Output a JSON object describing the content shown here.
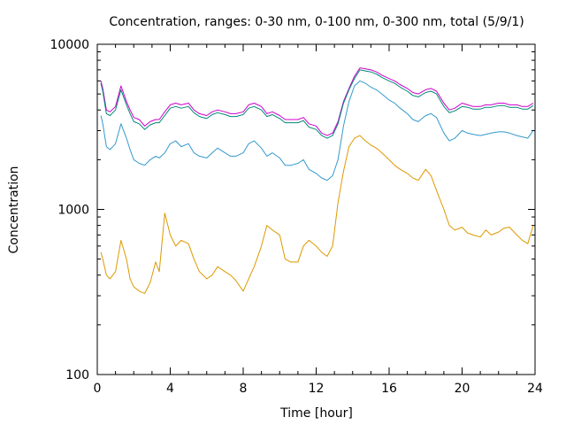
{
  "chart_data": {
    "type": "line",
    "title": "Concentration, ranges: 0-30 nm, 0-100 nm, 0-300 nm, total (5/9/1)",
    "xlabel": "Time [hour]",
    "ylabel": "Concentration",
    "xlim": [
      0,
      24
    ],
    "ylim": [
      100,
      10000
    ],
    "yscale": "log",
    "grid": false,
    "legend": "none",
    "xticks": [
      0,
      4,
      8,
      12,
      16,
      20,
      24
    ],
    "yticks": [
      100,
      1000,
      10000
    ],
    "x": [
      0.2,
      0.3,
      0.5,
      0.7,
      1.0,
      1.3,
      1.6,
      1.8,
      2.0,
      2.3,
      2.6,
      2.9,
      3.2,
      3.4,
      3.7,
      4.0,
      4.3,
      4.6,
      5.0,
      5.3,
      5.6,
      6.0,
      6.3,
      6.6,
      7.0,
      7.3,
      7.6,
      8.0,
      8.3,
      8.6,
      9.0,
      9.3,
      9.6,
      10.0,
      10.3,
      10.6,
      11.0,
      11.3,
      11.6,
      12.0,
      12.3,
      12.6,
      12.9,
      13.2,
      13.5,
      13.8,
      14.1,
      14.4,
      14.7,
      15.0,
      15.3,
      15.6,
      16.0,
      16.3,
      16.6,
      17.0,
      17.3,
      17.6,
      18.0,
      18.3,
      18.6,
      19.0,
      19.3,
      19.6,
      20.0,
      20.3,
      20.6,
      21.0,
      21.3,
      21.6,
      22.0,
      22.3,
      22.6,
      23.0,
      23.3,
      23.6,
      23.9
    ],
    "series": [
      {
        "color": "#cc00cc",
        "values": [
          6000,
          5400,
          4000,
          3900,
          4200,
          5600,
          4500,
          4000,
          3600,
          3500,
          3200,
          3400,
          3500,
          3500,
          3900,
          4300,
          4400,
          4300,
          4400,
          4000,
          3800,
          3700,
          3900,
          4000,
          3900,
          3800,
          3800,
          3900,
          4300,
          4400,
          4200,
          3800,
          3900,
          3700,
          3500,
          3500,
          3500,
          3600,
          3300,
          3200,
          2900,
          2800,
          2900,
          3400,
          4500,
          5400,
          6400,
          7200,
          7100,
          7000,
          6800,
          6500,
          6200,
          6000,
          5700,
          5400,
          5100,
          5000,
          5300,
          5400,
          5200,
          4400,
          4000,
          4100,
          4400,
          4300,
          4200,
          4200,
          4300,
          4300,
          4400,
          4400,
          4300,
          4300,
          4200,
          4200,
          4400
        ]
      },
      {
        "color": "#008877",
        "values": [
          5800,
          5200,
          3800,
          3700,
          4000,
          5300,
          4300,
          3800,
          3400,
          3300,
          3050,
          3250,
          3350,
          3350,
          3700,
          4100,
          4200,
          4100,
          4200,
          3850,
          3650,
          3550,
          3750,
          3850,
          3750,
          3650,
          3650,
          3750,
          4100,
          4200,
          4000,
          3650,
          3750,
          3550,
          3350,
          3350,
          3350,
          3450,
          3150,
          3050,
          2800,
          2700,
          2800,
          3300,
          4400,
          5300,
          6200,
          7000,
          6900,
          6800,
          6600,
          6300,
          6000,
          5800,
          5500,
          5200,
          4900,
          4800,
          5100,
          5200,
          5000,
          4200,
          3850,
          3950,
          4200,
          4150,
          4050,
          4050,
          4150,
          4150,
          4250,
          4250,
          4150,
          4150,
          4050,
          4050,
          4250
        ]
      },
      {
        "color": "#3399cc",
        "values": [
          3700,
          3300,
          2400,
          2300,
          2500,
          3300,
          2700,
          2300,
          2000,
          1900,
          1850,
          2000,
          2100,
          2050,
          2200,
          2500,
          2600,
          2400,
          2500,
          2200,
          2100,
          2050,
          2200,
          2350,
          2200,
          2100,
          2100,
          2200,
          2500,
          2600,
          2350,
          2100,
          2200,
          2050,
          1850,
          1850,
          1900,
          2000,
          1750,
          1650,
          1550,
          1500,
          1600,
          2000,
          3200,
          4500,
          5600,
          6000,
          5800,
          5500,
          5300,
          5000,
          4600,
          4400,
          4100,
          3800,
          3500,
          3400,
          3700,
          3800,
          3600,
          2900,
          2600,
          2700,
          3000,
          2900,
          2850,
          2800,
          2850,
          2900,
          2950,
          2950,
          2900,
          2800,
          2750,
          2700,
          3000
        ]
      },
      {
        "color": "#dd9900",
        "values": [
          550,
          500,
          400,
          380,
          420,
          650,
          500,
          380,
          340,
          320,
          310,
          360,
          480,
          420,
          950,
          700,
          600,
          650,
          620,
          500,
          420,
          380,
          400,
          450,
          420,
          400,
          370,
          320,
          380,
          450,
          600,
          800,
          750,
          700,
          500,
          480,
          480,
          600,
          650,
          600,
          550,
          520,
          600,
          1100,
          1700,
          2400,
          2700,
          2800,
          2600,
          2450,
          2350,
          2200,
          2000,
          1850,
          1750,
          1650,
          1550,
          1500,
          1750,
          1600,
          1300,
          1000,
          800,
          750,
          780,
          720,
          700,
          680,
          750,
          700,
          730,
          770,
          780,
          700,
          650,
          620,
          800
        ]
      }
    ]
  }
}
